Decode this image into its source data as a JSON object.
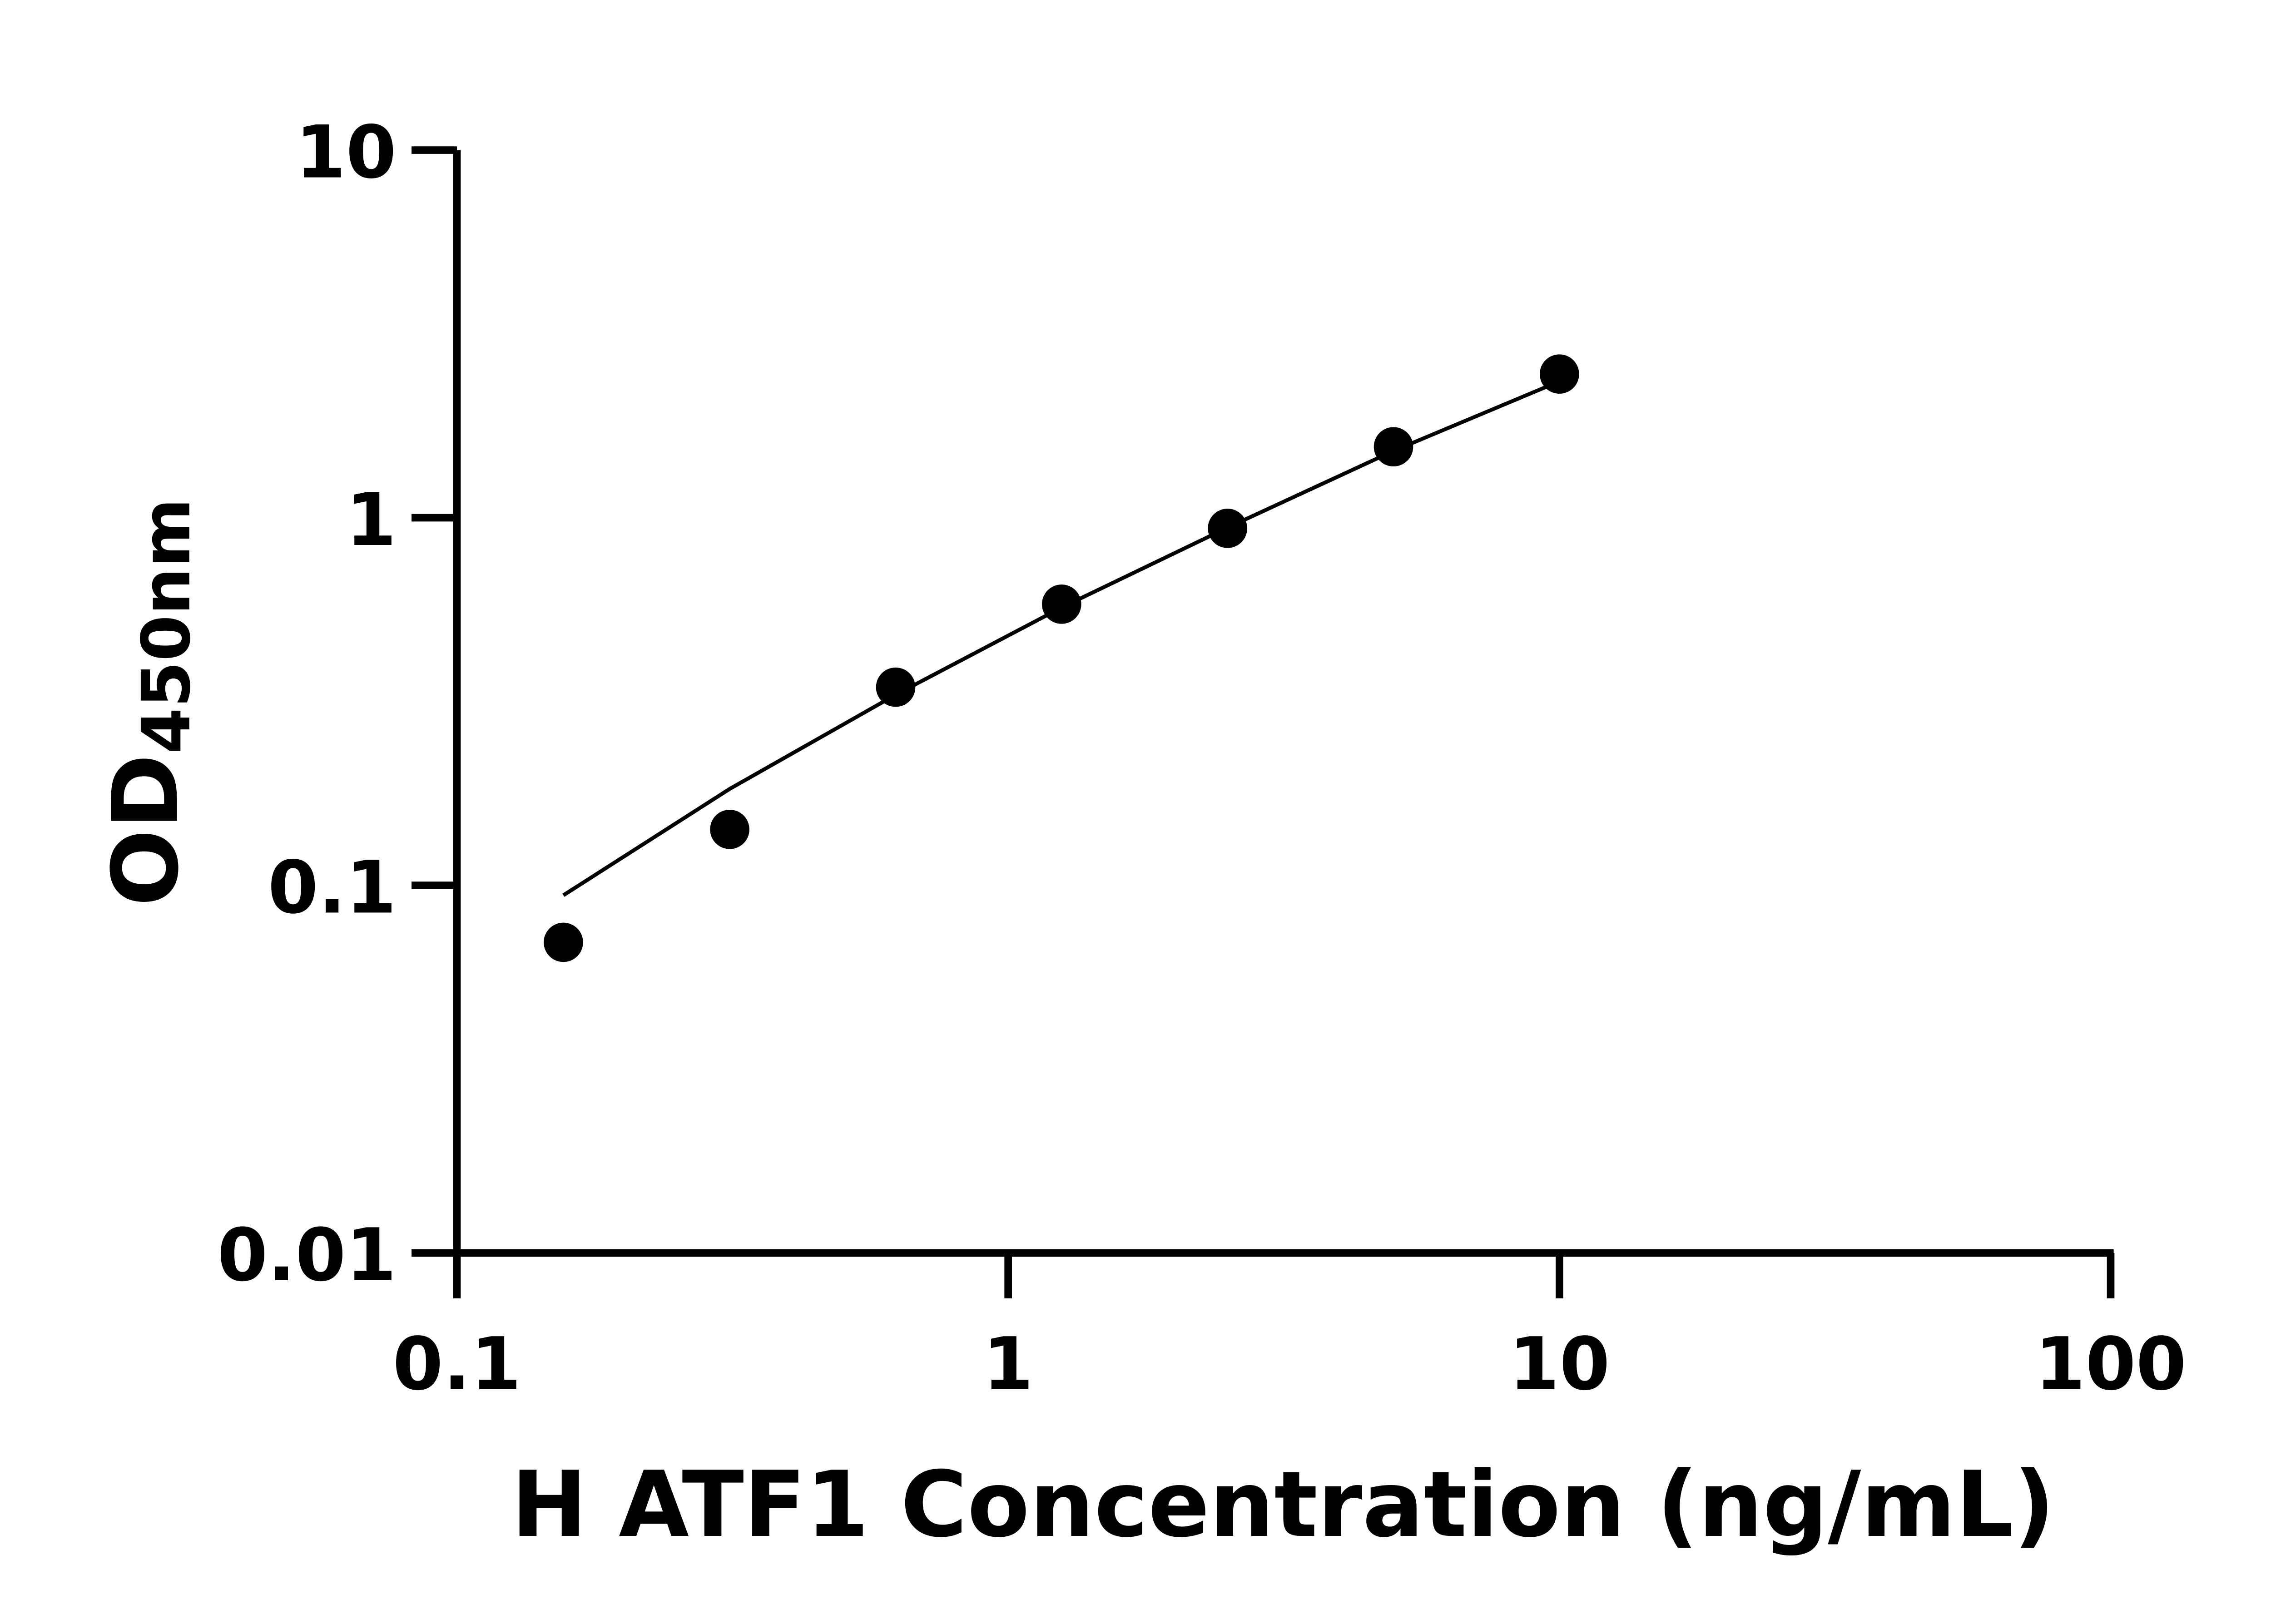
{
  "chart_data": {
    "type": "scatter",
    "title": "",
    "xlabel": "H ATF1 Concentration (ng/mL)",
    "ylabel_main": "OD",
    "ylabel_sub": "450nm",
    "xscale": "log",
    "yscale": "log",
    "xlim": [
      0.1,
      100
    ],
    "ylim": [
      0.01,
      10
    ],
    "xticks": [
      "0.1",
      "1",
      "10",
      "100"
    ],
    "yticks": [
      "0.01",
      "0.1",
      "1",
      "10"
    ],
    "grid": false,
    "legend": "none",
    "points": {
      "x": [
        0.156,
        0.3125,
        0.625,
        1.25,
        2.5,
        5,
        10
      ],
      "y": [
        0.07,
        0.142,
        0.346,
        0.582,
        0.936,
        1.56,
        2.46
      ]
    },
    "fit_curve": {
      "x": [
        0.156,
        0.3125,
        0.625,
        1.25,
        2.5,
        5,
        10
      ],
      "y": [
        0.094,
        0.183,
        0.33,
        0.57,
        0.94,
        1.52,
        2.35
      ]
    },
    "colors": {
      "points": "#000000",
      "curve": "#000000",
      "axes": "#000000"
    }
  }
}
